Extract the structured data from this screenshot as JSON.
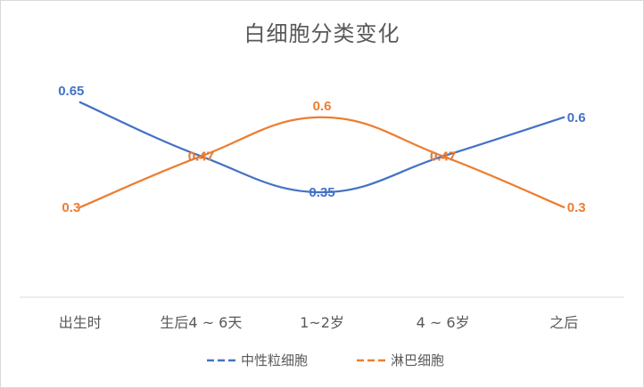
{
  "chart_data": {
    "type": "line",
    "title": "白细胞分类变化",
    "categories": [
      "出生时",
      "生后4 ~ 6天",
      "1~2岁",
      "4 ~ 6岁",
      "之后"
    ],
    "series": [
      {
        "name": "中性粒细胞",
        "values": [
          0.65,
          0.47,
          0.35,
          0.47,
          0.6
        ],
        "color": "#4472C4"
      },
      {
        "name": "淋巴细胞",
        "values": [
          0.3,
          0.47,
          0.6,
          0.47,
          0.3
        ],
        "color": "#ED7D31"
      }
    ],
    "ylim": [
      0,
      0.85
    ],
    "grid": false,
    "smooth": true,
    "data_labels": true,
    "legend_position": "bottom"
  }
}
